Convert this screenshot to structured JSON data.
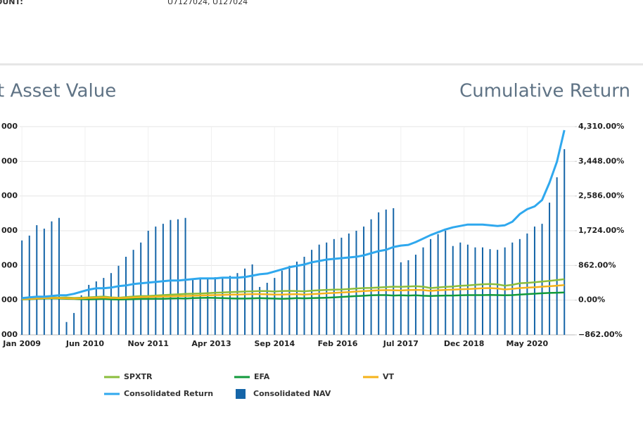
{
  "header": {
    "label": "OUNT:",
    "value": "U7127024, U127024"
  },
  "chart_data": {
    "type": "bar",
    "title": "t Asset Value",
    "y2_title": "Cumulative Return",
    "xlim": [
      2008.95,
      2021.4
    ],
    "xticks": [
      {
        "value": 2009.0,
        "label": "Jan 2009"
      },
      {
        "value": 2010.417,
        "label": "Jun 2010"
      },
      {
        "value": 2011.833,
        "label": "Nov 2011"
      },
      {
        "value": 2013.25,
        "label": "Apr 2013"
      },
      {
        "value": 2014.667,
        "label": "Sep 2014"
      },
      {
        "value": 2016.083,
        "label": "Feb 2016"
      },
      {
        "value": 2017.5,
        "label": "Jul 2017"
      },
      {
        "value": 2018.917,
        "label": "Dec 2018"
      },
      {
        "value": 2020.333,
        "label": "May 2020"
      }
    ],
    "ylim": [
      0,
      6
    ],
    "yticks": [
      {
        "value": 0,
        "label": "000"
      },
      {
        "value": 1,
        "label": "000"
      },
      {
        "value": 2,
        "label": "000"
      },
      {
        "value": 3,
        "label": "000"
      },
      {
        "value": 4,
        "label": "000"
      },
      {
        "value": 5,
        "label": "000"
      },
      {
        "value": 6,
        "label": "000"
      }
    ],
    "y2lim": [
      -862,
      4310
    ],
    "y2ticks": [
      {
        "value": -862,
        "label": "−862.00%"
      },
      {
        "value": 0,
        "label": "0.00%"
      },
      {
        "value": 862,
        "label": "862.00%"
      },
      {
        "value": 1724,
        "label": "1,724.00%"
      },
      {
        "value": 2586,
        "label": "2,586.00%"
      },
      {
        "value": 3448,
        "label": "3,448.00%"
      },
      {
        "value": 4310,
        "label": "4,310.00%"
      }
    ],
    "grid": true,
    "legend": "bottom",
    "x": [
      2009.0,
      2009.167,
      2009.333,
      2009.5,
      2009.667,
      2009.833,
      2010.0,
      2010.167,
      2010.333,
      2010.5,
      2010.667,
      2010.833,
      2011.0,
      2011.167,
      2011.333,
      2011.5,
      2011.667,
      2011.833,
      2012.0,
      2012.167,
      2012.333,
      2012.5,
      2012.667,
      2012.833,
      2013.0,
      2013.167,
      2013.333,
      2013.5,
      2013.667,
      2013.833,
      2014.0,
      2014.167,
      2014.333,
      2014.5,
      2014.667,
      2014.833,
      2015.0,
      2015.167,
      2015.333,
      2015.5,
      2015.667,
      2015.833,
      2016.0,
      2016.167,
      2016.333,
      2016.5,
      2016.667,
      2016.833,
      2017.0,
      2017.167,
      2017.333,
      2017.5,
      2017.667,
      2017.833,
      2018.0,
      2018.167,
      2018.333,
      2018.5,
      2018.667,
      2018.833,
      2019.0,
      2019.167,
      2019.333,
      2019.5,
      2019.667,
      2019.833,
      2020.0,
      2020.167,
      2020.333,
      2020.5,
      2020.667,
      2020.833,
      2021.0,
      2021.167
    ],
    "series": [
      {
        "name": "SPXTR",
        "type": "line",
        "axis": "y2",
        "color": "#8bbd3c",
        "values": [
          20,
          35,
          50,
          60,
          70,
          60,
          65,
          55,
          60,
          70,
          80,
          90,
          70,
          60,
          75,
          90,
          100,
          105,
          115,
          125,
          135,
          145,
          155,
          160,
          165,
          175,
          185,
          190,
          200,
          205,
          215,
          220,
          225,
          225,
          215,
          225,
          230,
          225,
          220,
          235,
          245,
          255,
          260,
          265,
          275,
          290,
          300,
          305,
          315,
          325,
          335,
          330,
          340,
          345,
          335,
          300,
          315,
          330,
          340,
          355,
          365,
          380,
          395,
          400,
          390,
          360,
          380,
          420,
          430,
          445,
          460,
          480,
          500,
          520
        ]
      },
      {
        "name": "EFA",
        "type": "line",
        "axis": "y2",
        "color": "#119a3b",
        "values": [
          20,
          25,
          35,
          40,
          45,
          40,
          35,
          30,
          25,
          20,
          25,
          30,
          20,
          15,
          20,
          25,
          30,
          30,
          35,
          35,
          40,
          45,
          40,
          50,
          55,
          60,
          55,
          50,
          45,
          40,
          40,
          45,
          50,
          45,
          40,
          35,
          40,
          50,
          45,
          50,
          55,
          60,
          70,
          80,
          90,
          100,
          110,
          120,
          125,
          125,
          115,
          120,
          115,
          120,
          110,
          105,
          110,
          115,
          115,
          120,
          125,
          125,
          125,
          130,
          125,
          120,
          125,
          140,
          150,
          160,
          170,
          180,
          185,
          190
        ]
      },
      {
        "name": "VT",
        "type": "line",
        "axis": "y2",
        "color": "#f5b31a",
        "values": [
          25,
          30,
          40,
          50,
          55,
          50,
          45,
          40,
          45,
          55,
          60,
          65,
          55,
          50,
          55,
          65,
          75,
          80,
          85,
          90,
          95,
          100,
          105,
          110,
          115,
          120,
          125,
          130,
          135,
          140,
          145,
          150,
          150,
          145,
          140,
          140,
          145,
          150,
          140,
          150,
          160,
          170,
          180,
          190,
          200,
          215,
          225,
          235,
          245,
          250,
          245,
          240,
          250,
          255,
          250,
          230,
          245,
          255,
          260,
          270,
          275,
          285,
          295,
          300,
          290,
          265,
          280,
          300,
          310,
          320,
          335,
          345,
          360,
          375
        ]
      },
      {
        "name": "Consolidated Return",
        "type": "line",
        "axis": "y2",
        "color": "#2fa8ee",
        "values": [
          52,
          70,
          87,
          87,
          104,
          122,
          122,
          156,
          209,
          261,
          295,
          295,
          313,
          348,
          365,
          400,
          417,
          435,
          452,
          469,
          487,
          487,
          504,
          521,
          539,
          539,
          539,
          556,
          556,
          556,
          574,
          608,
          643,
          660,
          713,
          765,
          817,
          852,
          886,
          939,
          973,
          1008,
          1025,
          1043,
          1060,
          1078,
          1112,
          1164,
          1217,
          1251,
          1321,
          1356,
          1373,
          1443,
          1529,
          1616,
          1686,
          1755,
          1808,
          1842,
          1877,
          1877,
          1877,
          1860,
          1842,
          1860,
          1947,
          2138,
          2259,
          2329,
          2485,
          2920,
          3441,
          4223
        ]
      },
      {
        "name": "Consolidated NAV",
        "type": "bar",
        "axis": "y",
        "color": "#1565a8",
        "values": [
          2.72,
          2.86,
          3.16,
          3.06,
          3.27,
          3.37,
          0.37,
          0.63,
          1.14,
          1.44,
          1.54,
          1.64,
          1.78,
          1.99,
          2.25,
          2.45,
          2.66,
          3.0,
          3.12,
          3.2,
          3.31,
          3.33,
          3.37,
          1.6,
          1.62,
          1.64,
          1.66,
          1.66,
          1.7,
          1.78,
          1.91,
          2.03,
          1.38,
          1.5,
          1.64,
          1.85,
          1.99,
          2.11,
          2.25,
          2.45,
          2.6,
          2.66,
          2.76,
          2.8,
          2.92,
          3.0,
          3.12,
          3.33,
          3.53,
          3.61,
          3.65,
          2.09,
          2.15,
          2.31,
          2.52,
          2.76,
          2.9,
          3.0,
          2.56,
          2.66,
          2.6,
          2.52,
          2.52,
          2.47,
          2.45,
          2.52,
          2.66,
          2.76,
          2.92,
          3.12,
          3.2,
          3.81,
          4.54,
          5.35
        ]
      }
    ]
  }
}
